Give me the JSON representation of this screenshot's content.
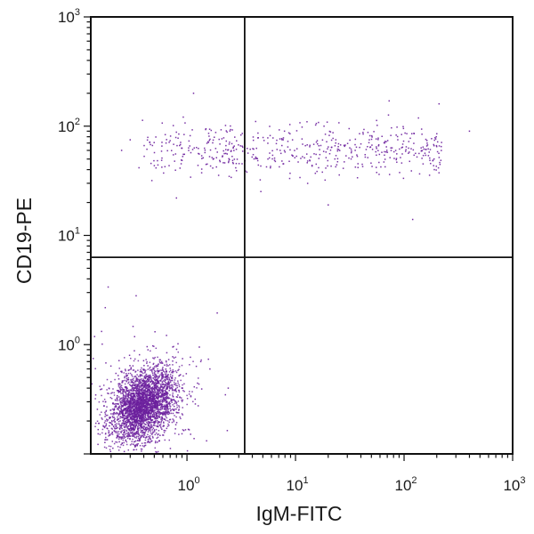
{
  "chart_data": {
    "type": "scatter",
    "title": "",
    "xlabel": "IgM-FITC",
    "ylabel": "CD19-PE",
    "xscale": "log",
    "yscale": "log",
    "xlim": [
      0.13,
      1000
    ],
    "ylim": [
      0.1,
      1000
    ],
    "x_ticks": [
      {
        "base": "10",
        "exp": "0"
      },
      {
        "base": "10",
        "exp": "1"
      },
      {
        "base": "10",
        "exp": "2"
      },
      {
        "base": "10",
        "exp": "3"
      }
    ],
    "y_ticks": [
      {
        "base": "10",
        "exp": "0"
      },
      {
        "base": "10",
        "exp": "1"
      },
      {
        "base": "10",
        "exp": "2"
      },
      {
        "base": "10",
        "exp": "3"
      }
    ],
    "quadrant_gates": {
      "x": 3.4,
      "y": 6.3
    },
    "marker_color": "#6a1e9c",
    "grid": false,
    "populations": [
      {
        "description_count": 3000,
        "x_log10_center": -0.4,
        "x_log10_spread": 0.15,
        "y_log10_center": -0.55,
        "y_log10_spread": 0.17
      },
      {
        "description_count": 550,
        "x_log10_range": [
          -0.45,
          2.35
        ],
        "y_log10_center": 1.78,
        "y_log10_spread": 0.12
      }
    ],
    "outlier_points": [
      {
        "x": 1.15,
        "y": 200
      },
      {
        "x": 400,
        "y": 90
      },
      {
        "x": 210,
        "y": 160
      },
      {
        "x": 1.9,
        "y": 1.95
      },
      {
        "x": 0.55,
        "y": 0.5
      },
      {
        "x": 1.3,
        "y": 0.95
      },
      {
        "x": 2.4,
        "y": 0.4
      },
      {
        "x": 0.25,
        "y": 60
      },
      {
        "x": 0.3,
        "y": 75
      },
      {
        "x": 120,
        "y": 14
      },
      {
        "x": 20,
        "y": 19
      },
      {
        "x": 0.8,
        "y": 22
      }
    ]
  }
}
